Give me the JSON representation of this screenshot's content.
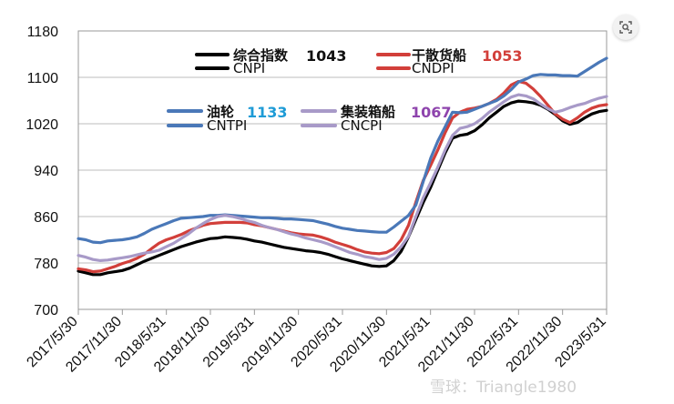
{
  "chart_data": {
    "type": "line",
    "title": "",
    "xlabel": "",
    "ylabel": "",
    "ylim": [
      700,
      1180
    ],
    "yticks": [
      700,
      780,
      860,
      940,
      1020,
      1100,
      1180
    ],
    "xticks": [
      "2017/5/30",
      "2017/11/30",
      "2018/5/31",
      "2018/11/30",
      "2019/5/31",
      "2019/11/30",
      "2020/5/31",
      "2020/11/30",
      "2021/5/31",
      "2021/11/30",
      "2022/5/31",
      "2022/11/30",
      "2023/5/31"
    ],
    "x": [
      0,
      1,
      2,
      3,
      4,
      5,
      6,
      7,
      8,
      9,
      10,
      11,
      12,
      13,
      14,
      15,
      16,
      17,
      18,
      19,
      20,
      21,
      22,
      23,
      24,
      25,
      26,
      27,
      28,
      29,
      30,
      31,
      32,
      33,
      34,
      35,
      36,
      37,
      38,
      39,
      40,
      41,
      42,
      43,
      44,
      45,
      46,
      47,
      48,
      49,
      50,
      51,
      52,
      53,
      54,
      55,
      56,
      57,
      58,
      59,
      60,
      61,
      62,
      63,
      64,
      65,
      66,
      67,
      68,
      69,
      70,
      71,
      72
    ],
    "series": [
      {
        "name": "综合指数",
        "color": "#000000",
        "values": [
          766,
          763,
          760,
          760,
          763,
          765,
          767,
          771,
          777,
          783,
          788,
          793,
          798,
          803,
          808,
          812,
          816,
          819,
          822,
          823,
          825,
          824,
          823,
          821,
          818,
          816,
          813,
          810,
          807,
          805,
          803,
          801,
          800,
          798,
          795,
          791,
          787,
          784,
          781,
          778,
          775,
          774,
          775,
          784,
          800,
          825,
          855,
          884,
          910,
          940,
          970,
          995,
          1000,
          1002,
          1008,
          1018,
          1030,
          1040,
          1050,
          1056,
          1059,
          1058,
          1056,
          1052,
          1045,
          1036,
          1025,
          1019,
          1022,
          1030,
          1037,
          1041,
          1043
        ]
      },
      {
        "name": "干散货船",
        "color": "#d23f3a",
        "values": [
          770,
          768,
          765,
          766,
          770,
          774,
          779,
          783,
          788,
          795,
          805,
          814,
          820,
          824,
          829,
          835,
          840,
          845,
          848,
          849,
          850,
          850,
          850,
          849,
          846,
          844,
          841,
          838,
          835,
          832,
          830,
          829,
          828,
          825,
          821,
          816,
          812,
          808,
          803,
          799,
          797,
          796,
          798,
          805,
          820,
          845,
          885,
          922,
          948,
          975,
          1005,
          1030,
          1040,
          1045,
          1047,
          1050,
          1055,
          1062,
          1073,
          1087,
          1093,
          1090,
          1080,
          1067,
          1052,
          1037,
          1028,
          1022,
          1030,
          1040,
          1047,
          1051,
          1053
        ]
      },
      {
        "name": "油轮",
        "color": "#4a78b8",
        "values": [
          822,
          820,
          816,
          815,
          818,
          819,
          820,
          822,
          825,
          831,
          838,
          843,
          848,
          853,
          857,
          858,
          859,
          860,
          862,
          862,
          863,
          862,
          861,
          860,
          859,
          858,
          858,
          857,
          856,
          856,
          855,
          854,
          853,
          850,
          847,
          843,
          840,
          838,
          836,
          835,
          834,
          833,
          833,
          842,
          852,
          862,
          880,
          920,
          960,
          990,
          1015,
          1040,
          1039,
          1040,
          1045,
          1050,
          1055,
          1060,
          1068,
          1079,
          1092,
          1097,
          1103,
          1105,
          1104,
          1104,
          1103,
          1103,
          1102,
          1110,
          1118,
          1126,
          1133
        ]
      },
      {
        "name": "集装箱船",
        "color": "#a89ac8",
        "values": [
          793,
          790,
          786,
          784,
          785,
          787,
          789,
          791,
          794,
          797,
          799,
          802,
          808,
          814,
          822,
          830,
          840,
          848,
          855,
          860,
          862,
          860,
          857,
          853,
          850,
          845,
          841,
          838,
          834,
          830,
          827,
          823,
          820,
          817,
          813,
          808,
          803,
          798,
          795,
          791,
          789,
          786,
          788,
          795,
          808,
          826,
          860,
          892,
          918,
          945,
          975,
          1000,
          1012,
          1015,
          1020,
          1029,
          1040,
          1049,
          1058,
          1066,
          1070,
          1068,
          1063,
          1054,
          1046,
          1040,
          1043,
          1048,
          1052,
          1055,
          1060,
          1064,
          1067
        ]
      }
    ],
    "legend": [
      {
        "name": "综合指数",
        "value": "1043",
        "sub": "CNPI",
        "color": "#000000",
        "valueColor": "#111111"
      },
      {
        "name": "干散货船",
        "value": "1053",
        "sub": "CNDPI",
        "color": "#d23f3a",
        "valueColor": "#d23f3a"
      },
      {
        "name": "油轮",
        "value": "1133",
        "sub": "CNTPI",
        "color": "#4a78b8",
        "valueColor": "#1e9bd6",
        "subColor": "#2fb3b8"
      },
      {
        "name": "集装箱船",
        "value": "1067",
        "sub": "CNCPI",
        "color": "#a89ac8",
        "valueColor": "#8e44ad"
      }
    ]
  },
  "watermark": "雪球：Triangle1980",
  "zoom_icon": "zoom-search-icon"
}
